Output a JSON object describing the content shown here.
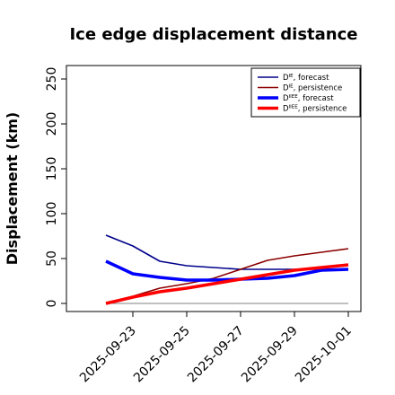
{
  "chart_data": {
    "type": "line",
    "title": "Ice edge displacement distance",
    "xlabel": "",
    "ylabel": "Displacement (km)",
    "x": [
      "2025-09-22",
      "2025-09-23",
      "2025-09-24",
      "2025-09-25",
      "2025-09-26",
      "2025-09-27",
      "2025-09-28",
      "2025-09-29",
      "2025-09-30",
      "2025-10-01"
    ],
    "xlim": [
      "2025-09-21",
      "2025-10-01"
    ],
    "ylim": [
      0,
      260
    ],
    "y_ticks": [
      "0",
      "50",
      "100",
      "150",
      "200",
      "250"
    ],
    "x_ticks": [
      {
        "date": "2025-09-23",
        "label": "2025-09-23",
        "color": "#228b22"
      },
      {
        "date": "2025-09-25",
        "label": "2025-09-25",
        "color": "#000000"
      },
      {
        "date": "2025-09-27",
        "label": "2025-09-27",
        "color": "#000000"
      },
      {
        "date": "2025-09-29",
        "label": "2025-09-29",
        "color": "#000000"
      },
      {
        "date": "2025-10-01",
        "label": "2025-10-01",
        "color": "#000000"
      }
    ],
    "reference_line": {
      "y": 0,
      "color": "#808080"
    },
    "legend_position": "top-right",
    "series": [
      {
        "name_main": "D",
        "name_sup": "IE",
        "name_rest": ", forecast",
        "color": "#00008b",
        "width": "thin",
        "values": [
          76,
          64,
          47,
          42,
          40,
          38,
          38,
          38,
          38,
          38
        ]
      },
      {
        "name_main": "D",
        "name_sup": "IE",
        "name_rest": ", persistence",
        "color": "#8b0000",
        "width": "thin",
        "values": [
          0,
          8,
          17,
          22,
          28,
          38,
          48,
          53,
          57,
          61
        ]
      },
      {
        "name_main": "D",
        "name_sup": "IIEE",
        "name_rest": ", forecast",
        "color": "#0000ff",
        "width": "thick",
        "values": [
          47,
          33,
          29,
          26,
          26,
          27,
          28,
          31,
          37,
          38
        ]
      },
      {
        "name_main": "D",
        "name_sup": "IIEE",
        "name_rest": ", persistence",
        "color": "#ff0000",
        "width": "thick",
        "values": [
          0,
          7,
          13,
          17,
          22,
          27,
          32,
          37,
          40,
          43
        ]
      }
    ]
  }
}
